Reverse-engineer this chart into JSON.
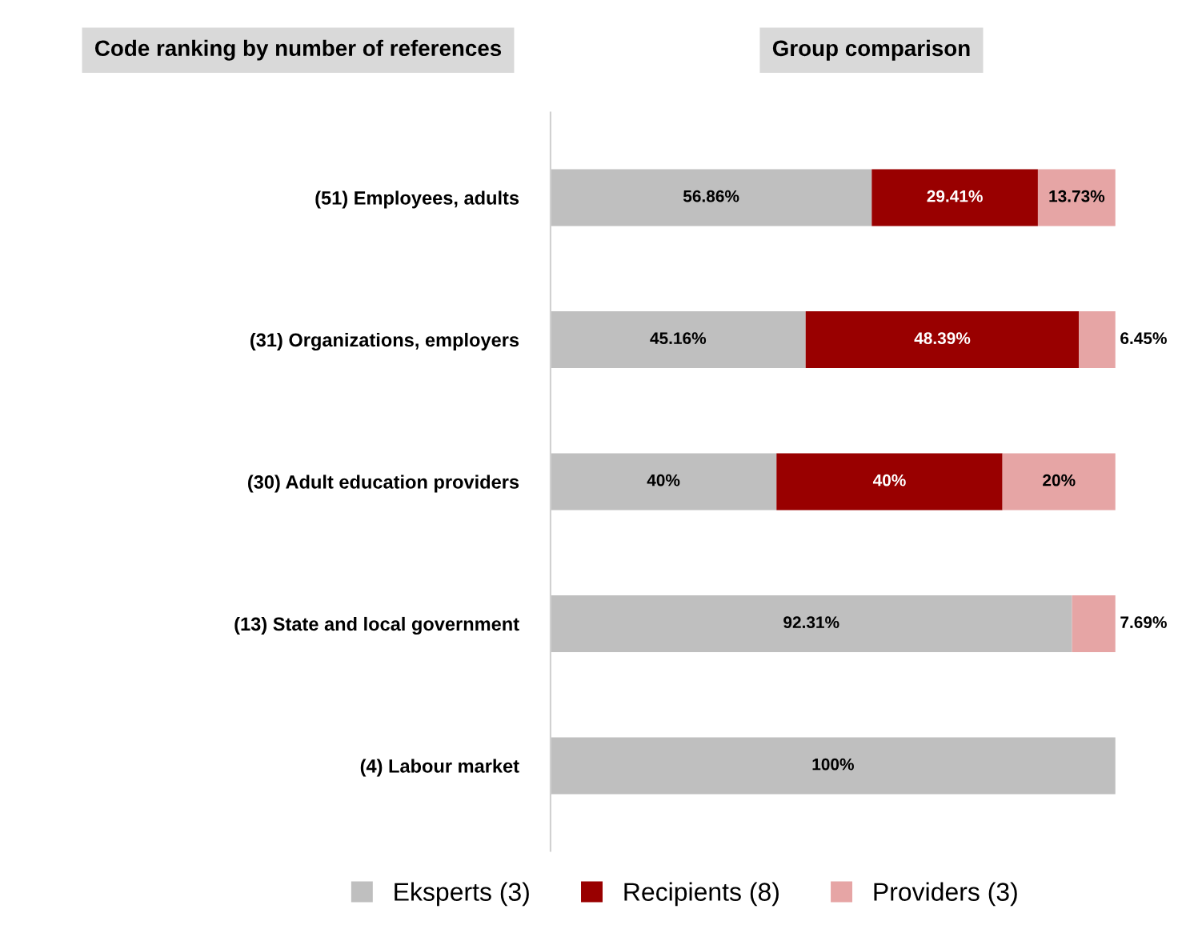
{
  "chart_data": {
    "type": "bar",
    "orientation": "horizontal",
    "stacked": true,
    "title": "Group comparison",
    "annotations": [
      "Code ranking by number of references"
    ],
    "categories": [
      "(51) Employees, adults",
      "(31) Organizations, employers",
      "(30) Adult education providers",
      "(13) State and local government",
      "(4) Labour market"
    ],
    "series": [
      {
        "name": "Eksperts (3)",
        "color": "#bfbfbf",
        "values": [
          56.86,
          45.16,
          40,
          92.31,
          100
        ],
        "value_labels": [
          "56.86%",
          "45.16%",
          "40%",
          "92.31%",
          "100%"
        ]
      },
      {
        "name": "Recipients (8)",
        "color": "#990000",
        "values": [
          29.41,
          48.39,
          40,
          0,
          0
        ],
        "value_labels": [
          "29.41%",
          "48.39%",
          "40%",
          null,
          null
        ]
      },
      {
        "name": "Providers (3)",
        "color": "#e6a5a5",
        "values": [
          13.73,
          6.45,
          20,
          7.69,
          0
        ],
        "value_labels": [
          "13.73%",
          "6.45%",
          "20%",
          "7.69%",
          null
        ]
      }
    ],
    "xlim": [
      0,
      100
    ],
    "tick_labels": "y",
    "grid": false,
    "legend": "bottom"
  }
}
